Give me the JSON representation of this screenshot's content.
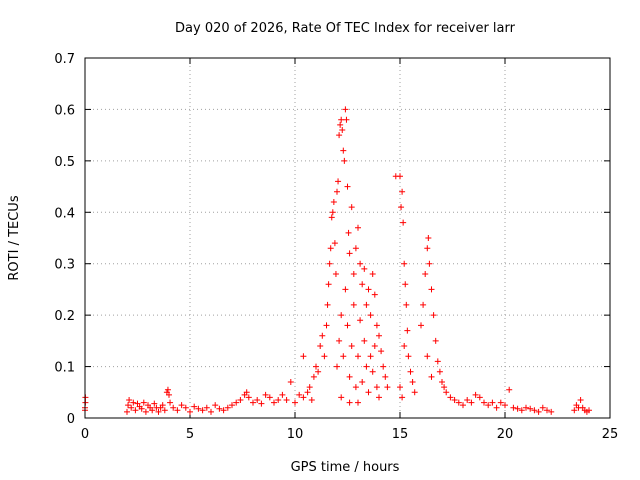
{
  "chart_data": {
    "type": "scatter",
    "title": "Day 020 of 2026, Rate Of TEC Index for receiver larr",
    "xlabel": "GPS time / hours",
    "ylabel": "ROTI / TECUs",
    "xlim": [
      0,
      25
    ],
    "ylim": [
      0,
      0.7
    ],
    "x_ticks": [
      0,
      5,
      10,
      15,
      20,
      25
    ],
    "x_tick_labels": [
      "0",
      "5",
      "10",
      "15",
      "20",
      "25"
    ],
    "y_ticks": [
      0,
      0.1,
      0.2,
      0.3,
      0.4,
      0.5,
      0.6,
      0.7
    ],
    "y_tick_labels": [
      "0",
      "0.1",
      "0.2",
      "0.3",
      "0.4",
      "0.5",
      "0.6",
      "0.7"
    ],
    "grid": true,
    "marker": "plus",
    "color": "#ff0000",
    "series": [
      {
        "points": [
          [
            0.0,
            0.015
          ],
          [
            0.0,
            0.02
          ],
          [
            0.02,
            0.03
          ],
          [
            0.02,
            0.04
          ],
          [
            2.0,
            0.012
          ],
          [
            2.05,
            0.025
          ],
          [
            2.1,
            0.035
          ],
          [
            2.2,
            0.02
          ],
          [
            2.3,
            0.03
          ],
          [
            2.4,
            0.015
          ],
          [
            2.5,
            0.028
          ],
          [
            2.6,
            0.022
          ],
          [
            2.7,
            0.018
          ],
          [
            2.8,
            0.03
          ],
          [
            2.9,
            0.012
          ],
          [
            3.0,
            0.025
          ],
          [
            3.1,
            0.02
          ],
          [
            3.2,
            0.015
          ],
          [
            3.3,
            0.028
          ],
          [
            3.4,
            0.02
          ],
          [
            3.5,
            0.012
          ],
          [
            3.6,
            0.02
          ],
          [
            3.7,
            0.025
          ],
          [
            3.8,
            0.015
          ],
          [
            3.9,
            0.05
          ],
          [
            3.95,
            0.055
          ],
          [
            4.0,
            0.045
          ],
          [
            4.05,
            0.03
          ],
          [
            4.2,
            0.02
          ],
          [
            4.4,
            0.015
          ],
          [
            4.6,
            0.025
          ],
          [
            4.8,
            0.02
          ],
          [
            5.0,
            0.012
          ],
          [
            5.2,
            0.022
          ],
          [
            5.4,
            0.018
          ],
          [
            5.6,
            0.015
          ],
          [
            5.8,
            0.02
          ],
          [
            6.0,
            0.012
          ],
          [
            6.2,
            0.025
          ],
          [
            6.4,
            0.018
          ],
          [
            6.6,
            0.015
          ],
          [
            6.8,
            0.02
          ],
          [
            7.0,
            0.025
          ],
          [
            7.2,
            0.03
          ],
          [
            7.4,
            0.035
          ],
          [
            7.6,
            0.045
          ],
          [
            7.7,
            0.05
          ],
          [
            7.8,
            0.04
          ],
          [
            8.0,
            0.03
          ],
          [
            8.2,
            0.035
          ],
          [
            8.4,
            0.028
          ],
          [
            8.6,
            0.045
          ],
          [
            8.8,
            0.04
          ],
          [
            9.0,
            0.03
          ],
          [
            9.2,
            0.035
          ],
          [
            9.4,
            0.045
          ],
          [
            9.6,
            0.035
          ],
          [
            9.8,
            0.07
          ],
          [
            10.0,
            0.03
          ],
          [
            10.2,
            0.045
          ],
          [
            10.4,
            0.04
          ],
          [
            10.6,
            0.05
          ],
          [
            10.8,
            0.035
          ],
          [
            10.4,
            0.12
          ],
          [
            10.7,
            0.06
          ],
          [
            10.9,
            0.08
          ],
          [
            11.0,
            0.1
          ],
          [
            11.1,
            0.09
          ],
          [
            11.2,
            0.14
          ],
          [
            11.3,
            0.16
          ],
          [
            11.4,
            0.12
          ],
          [
            11.5,
            0.18
          ],
          [
            11.55,
            0.22
          ],
          [
            11.6,
            0.26
          ],
          [
            11.65,
            0.3
          ],
          [
            11.7,
            0.33
          ],
          [
            11.75,
            0.39
          ],
          [
            11.8,
            0.4
          ],
          [
            11.85,
            0.42
          ],
          [
            11.9,
            0.34
          ],
          [
            11.95,
            0.28
          ],
          [
            12.0,
            0.44
          ],
          [
            12.05,
            0.46
          ],
          [
            12.1,
            0.55
          ],
          [
            12.15,
            0.57
          ],
          [
            12.2,
            0.58
          ],
          [
            12.25,
            0.56
          ],
          [
            12.3,
            0.52
          ],
          [
            12.35,
            0.5
          ],
          [
            12.4,
            0.6
          ],
          [
            12.45,
            0.58
          ],
          [
            12.5,
            0.45
          ],
          [
            12.55,
            0.36
          ],
          [
            12.6,
            0.32
          ],
          [
            12.7,
            0.41
          ],
          [
            12.8,
            0.28
          ],
          [
            12.9,
            0.33
          ],
          [
            13.0,
            0.37
          ],
          [
            13.1,
            0.3
          ],
          [
            13.2,
            0.26
          ],
          [
            13.3,
            0.29
          ],
          [
            13.4,
            0.22
          ],
          [
            13.5,
            0.25
          ],
          [
            13.6,
            0.2
          ],
          [
            13.7,
            0.28
          ],
          [
            13.8,
            0.24
          ],
          [
            13.9,
            0.18
          ],
          [
            14.0,
            0.16
          ],
          [
            14.1,
            0.13
          ],
          [
            14.2,
            0.1
          ],
          [
            14.3,
            0.08
          ],
          [
            14.4,
            0.06
          ],
          [
            12.0,
            0.1
          ],
          [
            12.1,
            0.15
          ],
          [
            12.2,
            0.2
          ],
          [
            12.3,
            0.12
          ],
          [
            12.4,
            0.25
          ],
          [
            12.5,
            0.18
          ],
          [
            12.6,
            0.08
          ],
          [
            12.7,
            0.14
          ],
          [
            12.8,
            0.22
          ],
          [
            12.9,
            0.06
          ],
          [
            13.0,
            0.12
          ],
          [
            13.1,
            0.19
          ],
          [
            13.2,
            0.07
          ],
          [
            13.3,
            0.15
          ],
          [
            13.4,
            0.1
          ],
          [
            13.5,
            0.05
          ],
          [
            13.6,
            0.12
          ],
          [
            13.7,
            0.09
          ],
          [
            13.8,
            0.14
          ],
          [
            13.9,
            0.06
          ],
          [
            14.0,
            0.04
          ],
          [
            12.2,
            0.04
          ],
          [
            12.6,
            0.03
          ],
          [
            13.0,
            0.03
          ],
          [
            14.8,
            0.47
          ],
          [
            15.0,
            0.47
          ],
          [
            15.05,
            0.41
          ],
          [
            15.1,
            0.44
          ],
          [
            15.15,
            0.38
          ],
          [
            15.2,
            0.3
          ],
          [
            15.25,
            0.26
          ],
          [
            15.3,
            0.22
          ],
          [
            15.35,
            0.17
          ],
          [
            15.4,
            0.12
          ],
          [
            15.5,
            0.09
          ],
          [
            15.6,
            0.07
          ],
          [
            15.7,
            0.05
          ],
          [
            15.0,
            0.06
          ],
          [
            15.1,
            0.04
          ],
          [
            15.2,
            0.14
          ],
          [
            16.0,
            0.18
          ],
          [
            16.1,
            0.22
          ],
          [
            16.2,
            0.28
          ],
          [
            16.3,
            0.33
          ],
          [
            16.35,
            0.35
          ],
          [
            16.4,
            0.3
          ],
          [
            16.5,
            0.25
          ],
          [
            16.6,
            0.2
          ],
          [
            16.7,
            0.15
          ],
          [
            16.8,
            0.11
          ],
          [
            16.9,
            0.09
          ],
          [
            17.0,
            0.07
          ],
          [
            17.1,
            0.06
          ],
          [
            17.2,
            0.05
          ],
          [
            17.4,
            0.04
          ],
          [
            16.3,
            0.12
          ],
          [
            16.5,
            0.08
          ],
          [
            17.6,
            0.035
          ],
          [
            17.8,
            0.03
          ],
          [
            18.0,
            0.025
          ],
          [
            18.2,
            0.035
          ],
          [
            18.4,
            0.03
          ],
          [
            18.6,
            0.045
          ],
          [
            18.8,
            0.04
          ],
          [
            19.0,
            0.03
          ],
          [
            19.2,
            0.025
          ],
          [
            19.4,
            0.03
          ],
          [
            19.6,
            0.02
          ],
          [
            19.8,
            0.03
          ],
          [
            20.0,
            0.025
          ],
          [
            20.2,
            0.055
          ],
          [
            20.4,
            0.02
          ],
          [
            20.6,
            0.018
          ],
          [
            20.8,
            0.015
          ],
          [
            21.0,
            0.02
          ],
          [
            21.2,
            0.018
          ],
          [
            21.4,
            0.015
          ],
          [
            21.6,
            0.012
          ],
          [
            21.8,
            0.02
          ],
          [
            22.0,
            0.015
          ],
          [
            22.2,
            0.012
          ],
          [
            23.3,
            0.015
          ],
          [
            23.4,
            0.025
          ],
          [
            23.5,
            0.02
          ],
          [
            23.6,
            0.035
          ],
          [
            23.7,
            0.02
          ],
          [
            23.8,
            0.015
          ],
          [
            23.9,
            0.012
          ],
          [
            24.0,
            0.015
          ]
        ]
      }
    ]
  }
}
